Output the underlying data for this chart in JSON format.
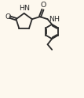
{
  "bg_color": "#fdf8ee",
  "line_color": "#2b2b2b",
  "line_width": 1.3,
  "font_size": 6.8,
  "fig_width": 1.07,
  "fig_height": 1.24,
  "dpi": 100,
  "xlim": [
    0,
    10.5
  ],
  "ylim": [
    0,
    12
  ]
}
